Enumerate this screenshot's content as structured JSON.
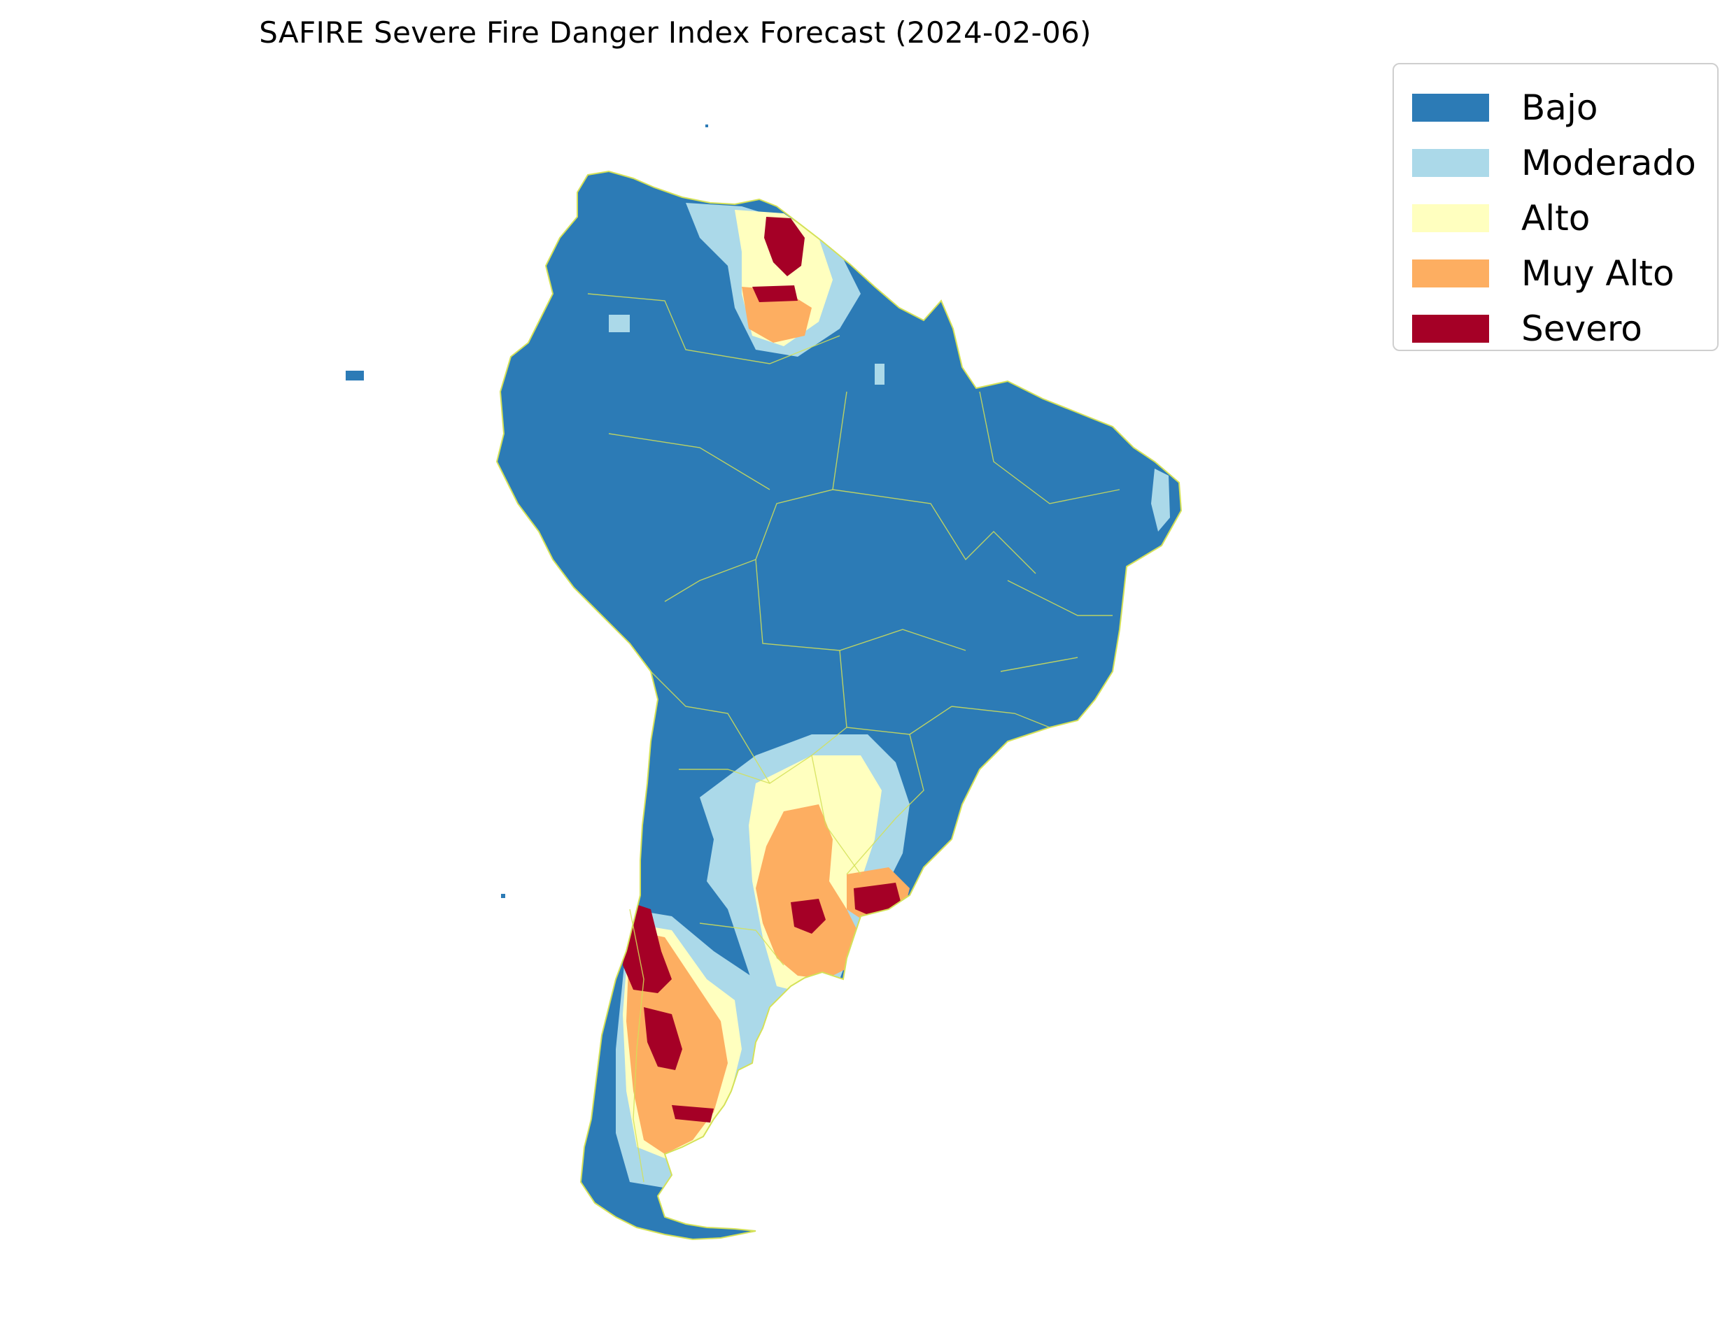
{
  "title": "SAFIRE Severe Fire Danger Index Forecast (2024-02-06)",
  "legend": {
    "items": [
      {
        "label": "Bajo",
        "color": "#2c7bb6"
      },
      {
        "label": "Moderado",
        "color": "#abd9e9"
      },
      {
        "label": "Alto",
        "color": "#ffffbf"
      },
      {
        "label": "Muy Alto",
        "color": "#fdae61"
      },
      {
        "label": "Severo",
        "color": "#a50026"
      }
    ]
  },
  "map": {
    "region": "South America",
    "border_color": "#d4e157",
    "background": "#ffffff"
  }
}
